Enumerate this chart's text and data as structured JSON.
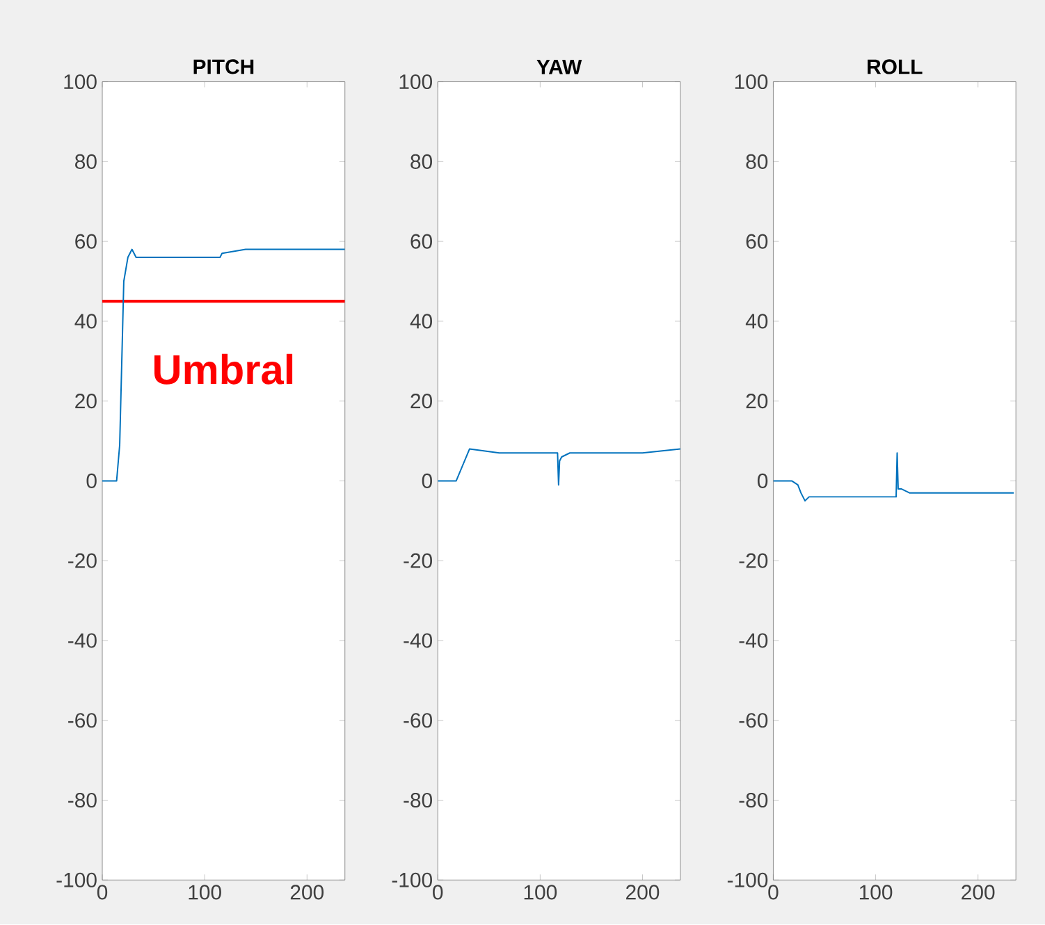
{
  "chart_data": [
    {
      "type": "line",
      "title": "PITCH",
      "color": "#0072bd",
      "xlim": [
        0,
        237
      ],
      "ylim": [
        -100,
        100
      ],
      "xticks": [
        0,
        100,
        200
      ],
      "yticks": [
        -100,
        -80,
        -60,
        -40,
        -20,
        0,
        20,
        40,
        60,
        80,
        100
      ],
      "x": [
        0,
        14,
        17,
        21,
        25,
        29,
        33,
        60,
        90,
        115,
        117,
        140,
        170,
        200,
        237
      ],
      "values": [
        0,
        0,
        9,
        50,
        56,
        58,
        56,
        56,
        56,
        56,
        57,
        58,
        58,
        58,
        58
      ],
      "ref_lines": [
        {
          "axis": "y",
          "value": 45,
          "color": "#ff0000"
        }
      ],
      "annotations": [
        "Umbral"
      ]
    },
    {
      "type": "line",
      "title": "YAW",
      "color": "#0072bd",
      "xlim": [
        0,
        237
      ],
      "ylim": [
        -100,
        100
      ],
      "xticks": [
        0,
        100,
        200
      ],
      "yticks": [
        -100,
        -80,
        -60,
        -40,
        -20,
        0,
        20,
        40,
        60,
        80,
        100
      ],
      "x": [
        0,
        18,
        31,
        60,
        90,
        117,
        118,
        119,
        121,
        129,
        160,
        200,
        237
      ],
      "values": [
        0,
        0,
        8,
        7,
        7,
        7,
        -1,
        5,
        6,
        7,
        7,
        7,
        8
      ]
    },
    {
      "type": "line",
      "title": "ROLL",
      "color": "#0072bd",
      "xlim": [
        0,
        237
      ],
      "ylim": [
        -100,
        100
      ],
      "xticks": [
        0,
        100,
        200
      ],
      "yticks": [
        -100,
        -80,
        -60,
        -40,
        -20,
        0,
        20,
        40,
        60,
        80,
        100
      ],
      "x": [
        0,
        7,
        18,
        24,
        27,
        31,
        35,
        70,
        120,
        121,
        122,
        125,
        133,
        156,
        200,
        235
      ],
      "values": [
        0,
        0,
        0,
        -1,
        -3,
        -5,
        -4,
        -4,
        -4,
        7,
        -2,
        -2,
        -3,
        -3,
        -3,
        -3
      ]
    }
  ]
}
